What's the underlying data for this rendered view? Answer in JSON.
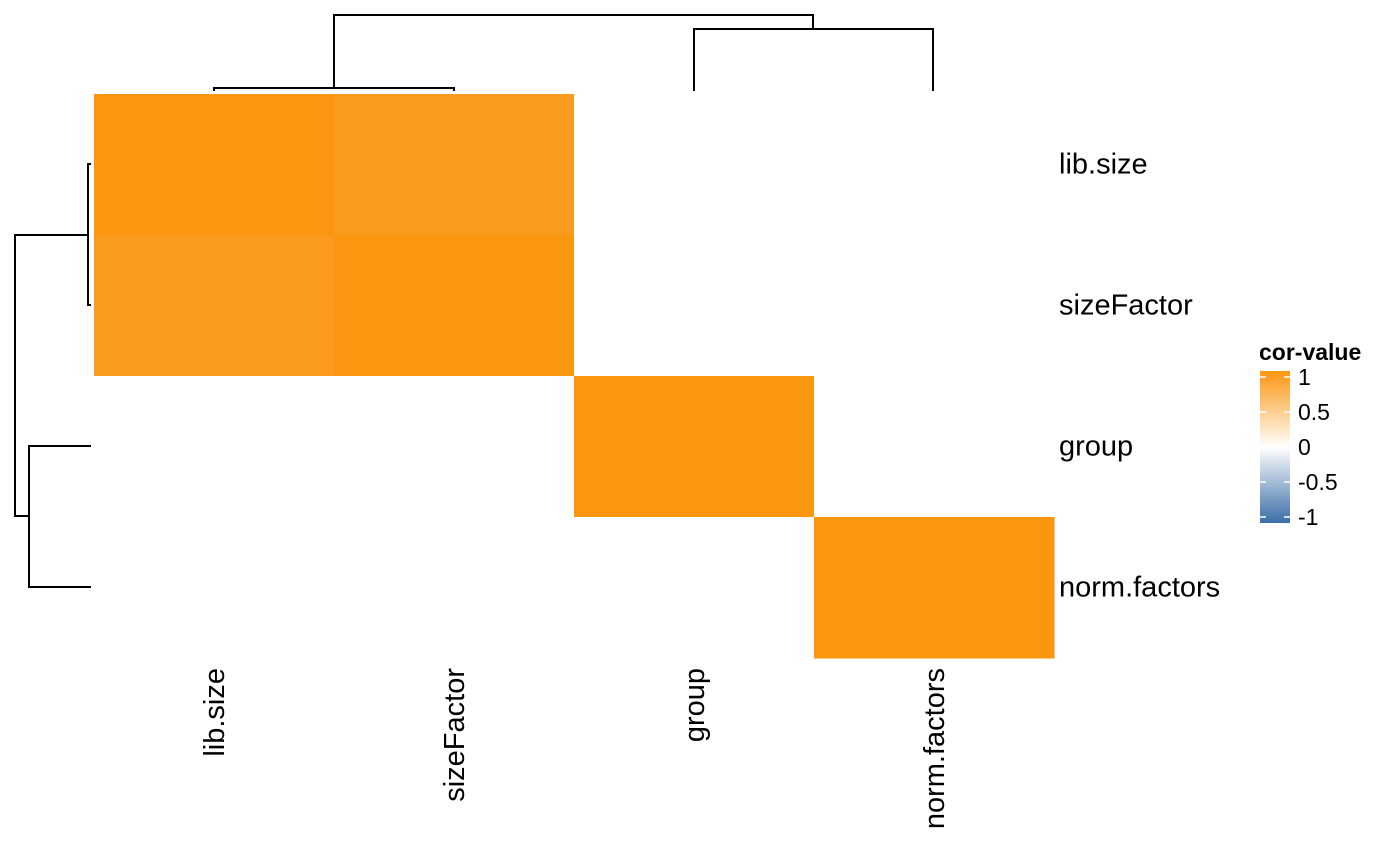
{
  "chart_data": {
    "type": "heatmap",
    "rows": [
      "lib.size",
      "sizeFactor",
      "group",
      "norm.factors"
    ],
    "columns": [
      "lib.size",
      "sizeFactor",
      "group",
      "norm.factors"
    ],
    "values": [
      [
        1.0,
        0.95,
        0.0,
        0.0
      ],
      [
        0.95,
        1.0,
        0.0,
        0.0
      ],
      [
        0.0,
        0.0,
        1.0,
        0.0
      ],
      [
        0.0,
        0.0,
        0.0,
        1.0
      ]
    ],
    "legend": {
      "title": "cor-value",
      "ticks": [
        1,
        0.5,
        0,
        -0.5,
        -1
      ],
      "tick_labels": [
        "1",
        "0.5",
        "0",
        "-0.5",
        "-1"
      ],
      "range": [
        -1,
        1
      ],
      "placement": "right"
    },
    "colors": {
      "high": "#fb9611",
      "mid": "#ffffff",
      "low": "#3a6da7"
    },
    "dendrogram": {
      "columns": [
        [
          "lib.size",
          "sizeFactor"
        ],
        [
          "group",
          "norm.factors"
        ]
      ],
      "rows": [
        [
          "lib.size",
          "sizeFactor"
        ],
        [
          "group",
          "norm.factors"
        ]
      ]
    }
  }
}
